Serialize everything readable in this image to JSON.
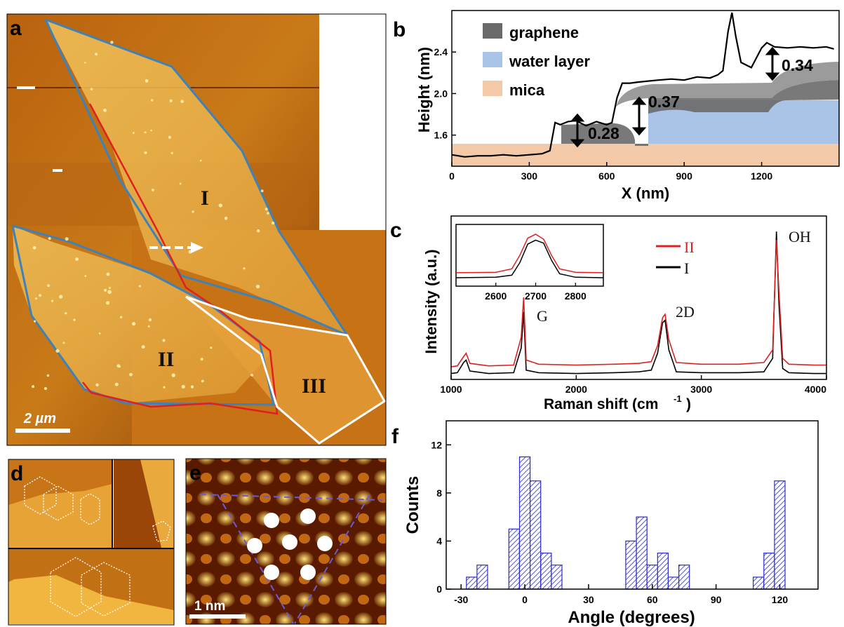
{
  "panels": {
    "a": "a",
    "b": "b",
    "c": "c",
    "d": "d",
    "e": "e",
    "f": "f"
  },
  "panel_a": {
    "regions": [
      "I",
      "II",
      "III"
    ],
    "scale_bar": "2 µm",
    "colors": {
      "blue_outline": "#3d82b8",
      "red_outline": "#e02020",
      "white_outline": "#ffffff"
    }
  },
  "panel_e": {
    "scale_bar": "1 nm"
  },
  "chart_data": [
    {
      "panel": "b",
      "type": "line",
      "xlabel": "X (nm)",
      "ylabel": "Height (nm)",
      "xlim": [
        0,
        1500
      ],
      "ylim": [
        1.3,
        2.8
      ],
      "xticks": [
        0,
        300,
        600,
        900,
        1200
      ],
      "yticks": [
        1.6,
        2.0,
        2.4
      ],
      "legend": [
        "graphene",
        "water layer",
        "mica"
      ],
      "legend_colors": [
        "#6a6a6a",
        "#a9c4e6",
        "#f4c9a8"
      ],
      "annotations": [
        "0.28",
        "0.37",
        "0.34"
      ],
      "series": [
        {
          "x": [
            0,
            50,
            100,
            150,
            200,
            250,
            300,
            350,
            380,
            400,
            420,
            450,
            480,
            520,
            560,
            600,
            620,
            640,
            660,
            690,
            720,
            760,
            800,
            850,
            900,
            950,
            1000,
            1030,
            1050,
            1070,
            1085,
            1100,
            1120,
            1160,
            1200,
            1220,
            1250,
            1300,
            1350,
            1400,
            1450,
            1480
          ],
          "y": [
            1.41,
            1.39,
            1.4,
            1.4,
            1.41,
            1.4,
            1.41,
            1.42,
            1.45,
            1.72,
            1.7,
            1.73,
            1.74,
            1.69,
            1.73,
            1.7,
            1.72,
            1.96,
            2.1,
            2.1,
            2.11,
            2.12,
            2.13,
            2.14,
            2.13,
            2.16,
            2.15,
            2.18,
            2.22,
            2.6,
            2.78,
            2.55,
            2.3,
            2.25,
            2.44,
            2.49,
            2.45,
            2.44,
            2.45,
            2.44,
            2.45,
            2.43
          ]
        }
      ]
    },
    {
      "panel": "c",
      "type": "line",
      "xlabel": "Raman shift (cm",
      "xlabel_sup": "-1",
      "xlabel_close": ")",
      "ylabel": "Intensity (a.u.)",
      "xlim": [
        1000,
        4000
      ],
      "xticks": [
        1000,
        2000,
        3000,
        4000
      ],
      "peak_labels": [
        "G",
        "2D",
        "OH"
      ],
      "series": [
        {
          "name": "II",
          "color": "#e02020",
          "x": [
            1000,
            1050,
            1100,
            1120,
            1150,
            1300,
            1500,
            1560,
            1580,
            1600,
            1700,
            2000,
            2300,
            2500,
            2600,
            2650,
            2690,
            2710,
            2740,
            2800,
            3000,
            3300,
            3500,
            3570,
            3600,
            3620,
            3650,
            3700,
            3900,
            4000
          ],
          "y": [
            0.1,
            0.11,
            0.22,
            0.26,
            0.14,
            0.11,
            0.12,
            0.45,
            0.92,
            0.18,
            0.13,
            0.12,
            0.13,
            0.14,
            0.16,
            0.35,
            0.68,
            0.72,
            0.42,
            0.15,
            0.13,
            0.13,
            0.15,
            0.3,
            1.6,
            1.0,
            0.2,
            0.13,
            0.12,
            0.12
          ]
        },
        {
          "name": "I",
          "color": "#000000",
          "x": [
            1000,
            1050,
            1100,
            1120,
            1150,
            1300,
            1500,
            1560,
            1580,
            1600,
            1700,
            2000,
            2300,
            2500,
            2600,
            2650,
            2690,
            2710,
            2740,
            2800,
            3000,
            3300,
            3500,
            3570,
            3600,
            3620,
            3650,
            3700,
            3900,
            4000
          ],
          "y": [
            0.02,
            0.03,
            0.15,
            0.18,
            0.05,
            0.02,
            0.03,
            0.32,
            0.75,
            0.06,
            0.03,
            0.02,
            0.03,
            0.04,
            0.06,
            0.26,
            0.62,
            0.65,
            0.3,
            0.04,
            0.03,
            0.03,
            0.04,
            0.2,
            1.7,
            0.85,
            0.08,
            0.03,
            0.02,
            0.02
          ]
        }
      ],
      "inset": {
        "xlim": [
          2500,
          2870
        ],
        "xticks": [
          2600,
          2700,
          2800
        ],
        "series": [
          {
            "name": "II",
            "color": "#e02020",
            "x": [
              2500,
              2600,
              2640,
              2660,
              2680,
              2700,
              2720,
              2740,
              2760,
              2800,
              2870
            ],
            "y": [
              0.2,
              0.21,
              0.28,
              0.55,
              0.9,
              0.98,
              0.88,
              0.55,
              0.28,
              0.21,
              0.2
            ]
          },
          {
            "name": "I",
            "color": "#000000",
            "x": [
              2500,
              2600,
              2640,
              2660,
              2680,
              2700,
              2720,
              2740,
              2760,
              2800,
              2870
            ],
            "y": [
              0.1,
              0.11,
              0.15,
              0.4,
              0.78,
              0.86,
              0.8,
              0.45,
              0.18,
              0.11,
              0.1
            ]
          }
        ]
      }
    },
    {
      "panel": "f",
      "type": "bar",
      "xlabel": "Angle (degrees)",
      "ylabel": "Counts",
      "xlim": [
        -37,
        138
      ],
      "ylim": [
        0,
        14
      ],
      "xticks": [
        -30,
        0,
        30,
        60,
        90,
        120
      ],
      "yticks": [
        0,
        4,
        8,
        12
      ],
      "bin_width": 5,
      "x": [
        -25,
        -20,
        -5,
        0,
        5,
        10,
        15,
        50,
        55,
        60,
        65,
        70,
        75,
        80,
        110,
        115,
        120
      ],
      "values": [
        1,
        2,
        5,
        11,
        9,
        3,
        2,
        4,
        6,
        2,
        3,
        1,
        2,
        0,
        1,
        3,
        9
      ],
      "color": "#2a2ad0"
    }
  ]
}
